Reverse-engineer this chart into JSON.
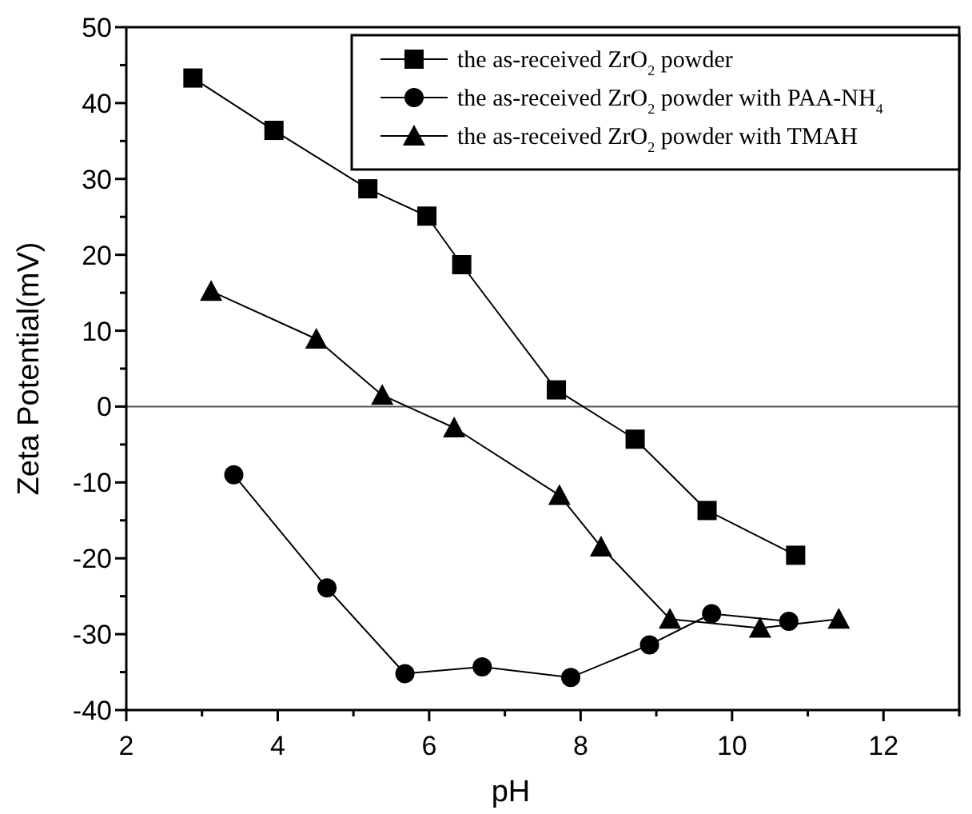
{
  "chart_data": {
    "type": "line",
    "xlabel": "pH",
    "ylabel": "Zeta Potential(mV)",
    "xlim": [
      2,
      13
    ],
    "xticks": [
      2,
      {
        "value": 3,
        "label": null
      },
      4,
      {
        "value": 5,
        "label": null
      },
      6,
      {
        "value": 7,
        "label": null
      },
      8,
      {
        "value": 9,
        "label": null
      },
      10,
      {
        "value": 11,
        "label": null
      },
      12,
      {
        "value": 13,
        "label": null
      }
    ],
    "ylim": [
      -40,
      50
    ],
    "yticks": [
      -40,
      {
        "value": -35,
        "label": null
      },
      -30,
      {
        "value": -25,
        "label": null
      },
      -20,
      {
        "value": -15,
        "label": null
      },
      -10,
      {
        "value": -5,
        "label": null
      },
      0,
      {
        "value": 5,
        "label": null
      },
      10,
      {
        "value": 15,
        "label": null
      },
      20,
      {
        "value": 25,
        "label": null
      },
      30,
      {
        "value": 35,
        "label": null
      },
      40,
      {
        "value": 45,
        "label": null
      },
      50
    ],
    "grid": false,
    "legend": "top right",
    "line_style": "solid",
    "ref_lines": [
      {
        "axis": "y",
        "value": 0,
        "color": "#555555"
      }
    ],
    "series": [
      {
        "name": "the as-received ZrO$_{2}$ powder",
        "color": "#000000",
        "marker": "square",
        "x": [
          2.88,
          3.95,
          5.19,
          5.97,
          6.43,
          7.68,
          8.72,
          9.67,
          10.84
        ],
        "values": [
          43.3,
          36.4,
          28.7,
          25.1,
          18.7,
          2.2,
          -4.3,
          -13.7,
          -19.6
        ]
      },
      {
        "name": "the as-received ZrO$_{2}$ powder with PAA-NH$_{4}$",
        "color": "#000000",
        "marker": "circle",
        "x": [
          3.42,
          4.65,
          5.68,
          6.7,
          7.87,
          8.91,
          9.73,
          10.75
        ],
        "values": [
          -9.0,
          -23.9,
          -35.2,
          -34.3,
          -35.7,
          -31.4,
          -27.3,
          -28.3
        ]
      },
      {
        "name": "the as-received ZrO$_{2}$ powder with TMAH",
        "color": "#000000",
        "marker": "triangle",
        "x": [
          3.12,
          4.51,
          5.38,
          6.33,
          7.72,
          8.27,
          9.18,
          10.37,
          11.41
        ],
        "values": [
          15.2,
          8.9,
          1.5,
          -2.8,
          -11.7,
          -18.5,
          -28.0,
          -29.2,
          -28.0
        ]
      }
    ]
  }
}
